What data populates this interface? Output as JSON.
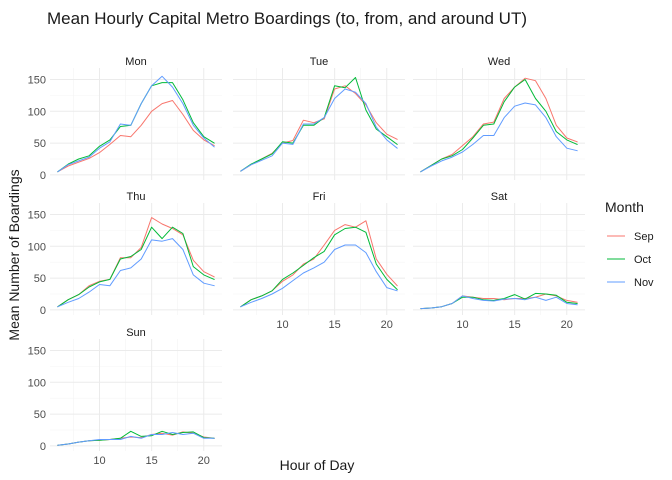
{
  "chart_data": {
    "type": "line",
    "title": "Mean Hourly Capital Metro Boardings (to, from, and around UT)",
    "xlabel": "Hour of Day",
    "ylabel": "Mean Number of Boardings",
    "x": [
      6,
      7,
      8,
      9,
      10,
      11,
      12,
      13,
      14,
      15,
      16,
      17,
      18,
      19,
      20,
      21
    ],
    "x_ticks": [
      10,
      15,
      20
    ],
    "xlim": [
      5.25,
      21.75
    ],
    "y_ticks": [
      0,
      50,
      100,
      150
    ],
    "ylim": [
      -8,
      168
    ],
    "grid": true,
    "legend": {
      "title": "Month",
      "placement": "right",
      "entries": [
        {
          "label": "Sep",
          "color": "#F8766D"
        },
        {
          "label": "Oct",
          "color": "#00BA38"
        },
        {
          "label": "Nov",
          "color": "#619CFF"
        }
      ]
    },
    "panels": [
      {
        "label": "Mon",
        "series": {
          "Sep": [
            5,
            14,
            20,
            26,
            35,
            48,
            62,
            60,
            78,
            100,
            112,
            117,
            95,
            70,
            55,
            46
          ],
          "Oct": [
            5,
            17,
            25,
            30,
            45,
            55,
            76,
            78,
            112,
            140,
            145,
            145,
            118,
            82,
            60,
            50
          ],
          "Nov": [
            5,
            16,
            22,
            28,
            42,
            52,
            80,
            78,
            112,
            140,
            155,
            138,
            112,
            78,
            58,
            44
          ]
        }
      },
      {
        "label": "Tue",
        "series": {
          "Sep": [
            6,
            16,
            25,
            34,
            50,
            54,
            86,
            82,
            88,
            135,
            140,
            128,
            110,
            82,
            64,
            56
          ],
          "Oct": [
            6,
            17,
            25,
            33,
            52,
            50,
            78,
            78,
            90,
            140,
            137,
            153,
            102,
            72,
            60,
            48
          ],
          "Nov": [
            6,
            16,
            23,
            30,
            50,
            48,
            80,
            80,
            90,
            120,
            135,
            130,
            112,
            75,
            55,
            42
          ]
        }
      },
      {
        "label": "Wed",
        "series": {
          "Sep": [
            5,
            15,
            25,
            32,
            46,
            60,
            80,
            83,
            120,
            138,
            152,
            148,
            120,
            78,
            58,
            52
          ],
          "Oct": [
            5,
            15,
            25,
            30,
            40,
            58,
            78,
            80,
            115,
            138,
            150,
            120,
            100,
            68,
            55,
            48
          ],
          "Nov": [
            5,
            14,
            22,
            28,
            36,
            48,
            62,
            62,
            90,
            108,
            113,
            110,
            90,
            60,
            42,
            38
          ]
        }
      },
      {
        "label": "Thu",
        "series": {
          "Sep": [
            5,
            16,
            24,
            38,
            45,
            48,
            82,
            82,
            98,
            145,
            135,
            128,
            118,
            78,
            60,
            52
          ],
          "Oct": [
            5,
            16,
            24,
            36,
            44,
            48,
            80,
            84,
            95,
            130,
            112,
            130,
            120,
            68,
            55,
            48
          ],
          "Nov": [
            5,
            12,
            18,
            28,
            40,
            38,
            62,
            66,
            80,
            110,
            108,
            112,
            95,
            55,
            42,
            38
          ]
        }
      },
      {
        "label": "Fri",
        "series": {
          "Sep": [
            5,
            16,
            22,
            30,
            45,
            55,
            72,
            80,
            102,
            125,
            134,
            130,
            140,
            80,
            56,
            38
          ],
          "Oct": [
            5,
            16,
            22,
            30,
            48,
            58,
            70,
            82,
            92,
            118,
            128,
            130,
            122,
            72,
            48,
            32
          ],
          "Nov": [
            5,
            12,
            18,
            25,
            34,
            46,
            58,
            66,
            75,
            95,
            102,
            102,
            90,
            60,
            35,
            30
          ]
        }
      },
      {
        "label": "Sat",
        "series": {
          "Sep": [
            2,
            3,
            5,
            10,
            22,
            20,
            18,
            18,
            16,
            18,
            18,
            20,
            25,
            22,
            15,
            12
          ],
          "Oct": [
            2,
            3,
            5,
            10,
            20,
            20,
            16,
            15,
            18,
            24,
            17,
            26,
            25,
            23,
            12,
            10
          ],
          "Nov": [
            2,
            3,
            5,
            10,
            22,
            18,
            15,
            14,
            17,
            18,
            16,
            20,
            15,
            20,
            10,
            8
          ]
        }
      },
      {
        "label": "Sun",
        "series": {
          "Sep": [
            1,
            3,
            6,
            8,
            9,
            10,
            12,
            14,
            13,
            18,
            20,
            17,
            22,
            20,
            14,
            12
          ],
          "Oct": [
            1,
            3,
            6,
            8,
            9,
            10,
            12,
            23,
            15,
            16,
            23,
            18,
            21,
            22,
            13,
            12
          ],
          "Nov": [
            1,
            3,
            6,
            8,
            10,
            10,
            10,
            15,
            12,
            18,
            18,
            21,
            18,
            20,
            12,
            12
          ]
        }
      }
    ]
  }
}
